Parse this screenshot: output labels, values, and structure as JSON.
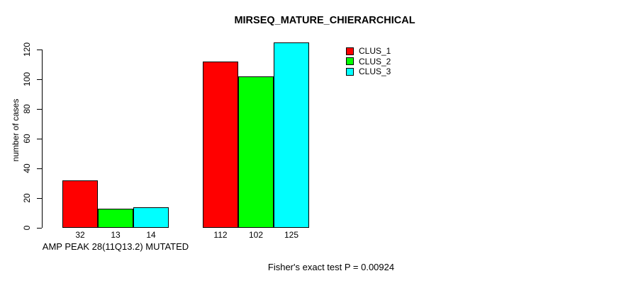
{
  "chart_data": {
    "type": "bar",
    "title": "MIRSEQ_MATURE_CHIERARCHICAL",
    "ylabel": "number of cases",
    "xlabel": "",
    "ylim": [
      0,
      120
    ],
    "yticks": [
      0,
      20,
      40,
      60,
      80,
      100,
      120
    ],
    "grid": false,
    "legend_position": "top-right",
    "categories": [
      "AMP PEAK 28(11Q13.2) MUTATED",
      ""
    ],
    "series": [
      {
        "name": "CLUS_1",
        "color": "#ff0000",
        "values": [
          32,
          112
        ]
      },
      {
        "name": "CLUS_2",
        "color": "#00ff00",
        "values": [
          13,
          102
        ]
      },
      {
        "name": "CLUS_3",
        "color": "#00ffff",
        "values": [
          14,
          125
        ]
      }
    ],
    "bar_value_labels": [
      [
        "32",
        "13",
        "14"
      ],
      [
        "112",
        "102",
        "125"
      ]
    ],
    "annotation": "Fisher's exact test P = 0.00924"
  }
}
